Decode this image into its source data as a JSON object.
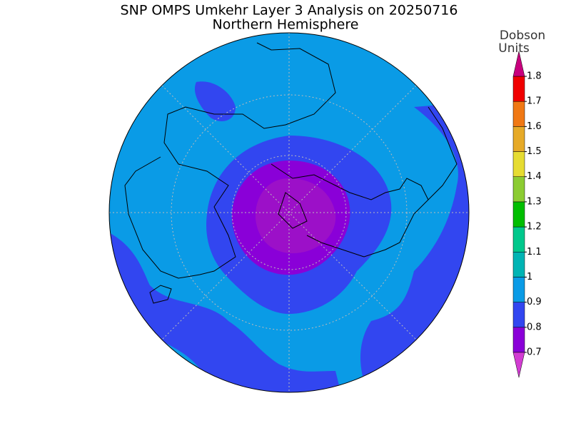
{
  "title": "SNP OMPS Umkehr Layer 3 Analysis on 20250716",
  "subtitle": "Northern Hemisphere",
  "colorbar": {
    "label": [
      "Dobson",
      "Units"
    ],
    "ticks": [
      0.7,
      0.8,
      0.9,
      1,
      1.1,
      1.2,
      1.3,
      1.4,
      1.5,
      1.6,
      1.7,
      1.8
    ],
    "below_color": "#d23cd2",
    "colors": [
      "#8a00d8",
      "#3246f0",
      "#0a9be6",
      "#00b4b4",
      "#00c88c",
      "#00be00",
      "#8ccc32",
      "#e6dc32",
      "#e6aa28",
      "#f07814",
      "#f00000"
    ],
    "above_color": "#c8007d"
  }
}
